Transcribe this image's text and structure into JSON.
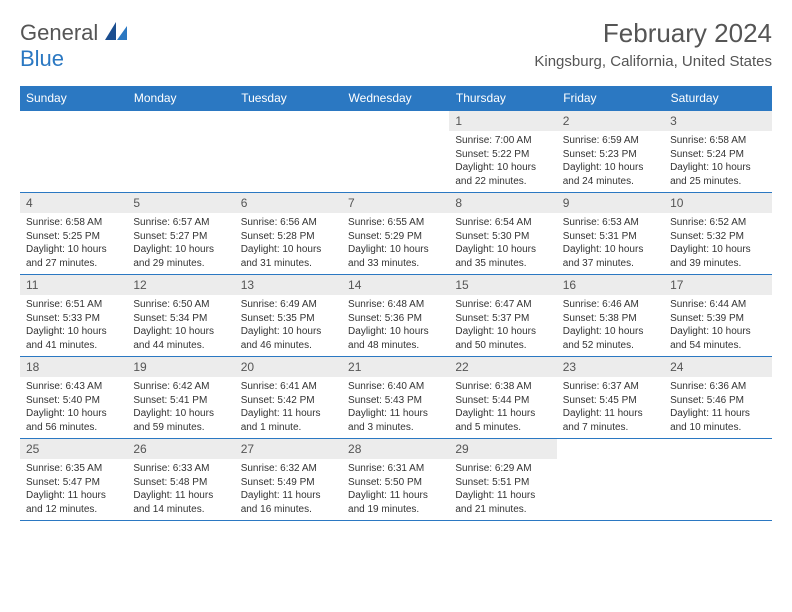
{
  "logo": {
    "text1": "General",
    "text2": "Blue"
  },
  "title": "February 2024",
  "subtitle": "Kingsburg, California, United States",
  "colors": {
    "accent": "#2b78c2",
    "header_row": "#ececec"
  },
  "headers": [
    "Sunday",
    "Monday",
    "Tuesday",
    "Wednesday",
    "Thursday",
    "Friday",
    "Saturday"
  ],
  "weeks": [
    [
      null,
      null,
      null,
      null,
      {
        "d": "1",
        "sr": "Sunrise: 7:00 AM",
        "ss": "Sunset: 5:22 PM",
        "dl1": "Daylight: 10 hours",
        "dl2": "and 22 minutes."
      },
      {
        "d": "2",
        "sr": "Sunrise: 6:59 AM",
        "ss": "Sunset: 5:23 PM",
        "dl1": "Daylight: 10 hours",
        "dl2": "and 24 minutes."
      },
      {
        "d": "3",
        "sr": "Sunrise: 6:58 AM",
        "ss": "Sunset: 5:24 PM",
        "dl1": "Daylight: 10 hours",
        "dl2": "and 25 minutes."
      }
    ],
    [
      {
        "d": "4",
        "sr": "Sunrise: 6:58 AM",
        "ss": "Sunset: 5:25 PM",
        "dl1": "Daylight: 10 hours",
        "dl2": "and 27 minutes."
      },
      {
        "d": "5",
        "sr": "Sunrise: 6:57 AM",
        "ss": "Sunset: 5:27 PM",
        "dl1": "Daylight: 10 hours",
        "dl2": "and 29 minutes."
      },
      {
        "d": "6",
        "sr": "Sunrise: 6:56 AM",
        "ss": "Sunset: 5:28 PM",
        "dl1": "Daylight: 10 hours",
        "dl2": "and 31 minutes."
      },
      {
        "d": "7",
        "sr": "Sunrise: 6:55 AM",
        "ss": "Sunset: 5:29 PM",
        "dl1": "Daylight: 10 hours",
        "dl2": "and 33 minutes."
      },
      {
        "d": "8",
        "sr": "Sunrise: 6:54 AM",
        "ss": "Sunset: 5:30 PM",
        "dl1": "Daylight: 10 hours",
        "dl2": "and 35 minutes."
      },
      {
        "d": "9",
        "sr": "Sunrise: 6:53 AM",
        "ss": "Sunset: 5:31 PM",
        "dl1": "Daylight: 10 hours",
        "dl2": "and 37 minutes."
      },
      {
        "d": "10",
        "sr": "Sunrise: 6:52 AM",
        "ss": "Sunset: 5:32 PM",
        "dl1": "Daylight: 10 hours",
        "dl2": "and 39 minutes."
      }
    ],
    [
      {
        "d": "11",
        "sr": "Sunrise: 6:51 AM",
        "ss": "Sunset: 5:33 PM",
        "dl1": "Daylight: 10 hours",
        "dl2": "and 41 minutes."
      },
      {
        "d": "12",
        "sr": "Sunrise: 6:50 AM",
        "ss": "Sunset: 5:34 PM",
        "dl1": "Daylight: 10 hours",
        "dl2": "and 44 minutes."
      },
      {
        "d": "13",
        "sr": "Sunrise: 6:49 AM",
        "ss": "Sunset: 5:35 PM",
        "dl1": "Daylight: 10 hours",
        "dl2": "and 46 minutes."
      },
      {
        "d": "14",
        "sr": "Sunrise: 6:48 AM",
        "ss": "Sunset: 5:36 PM",
        "dl1": "Daylight: 10 hours",
        "dl2": "and 48 minutes."
      },
      {
        "d": "15",
        "sr": "Sunrise: 6:47 AM",
        "ss": "Sunset: 5:37 PM",
        "dl1": "Daylight: 10 hours",
        "dl2": "and 50 minutes."
      },
      {
        "d": "16",
        "sr": "Sunrise: 6:46 AM",
        "ss": "Sunset: 5:38 PM",
        "dl1": "Daylight: 10 hours",
        "dl2": "and 52 minutes."
      },
      {
        "d": "17",
        "sr": "Sunrise: 6:44 AM",
        "ss": "Sunset: 5:39 PM",
        "dl1": "Daylight: 10 hours",
        "dl2": "and 54 minutes."
      }
    ],
    [
      {
        "d": "18",
        "sr": "Sunrise: 6:43 AM",
        "ss": "Sunset: 5:40 PM",
        "dl1": "Daylight: 10 hours",
        "dl2": "and 56 minutes."
      },
      {
        "d": "19",
        "sr": "Sunrise: 6:42 AM",
        "ss": "Sunset: 5:41 PM",
        "dl1": "Daylight: 10 hours",
        "dl2": "and 59 minutes."
      },
      {
        "d": "20",
        "sr": "Sunrise: 6:41 AM",
        "ss": "Sunset: 5:42 PM",
        "dl1": "Daylight: 11 hours",
        "dl2": "and 1 minute."
      },
      {
        "d": "21",
        "sr": "Sunrise: 6:40 AM",
        "ss": "Sunset: 5:43 PM",
        "dl1": "Daylight: 11 hours",
        "dl2": "and 3 minutes."
      },
      {
        "d": "22",
        "sr": "Sunrise: 6:38 AM",
        "ss": "Sunset: 5:44 PM",
        "dl1": "Daylight: 11 hours",
        "dl2": "and 5 minutes."
      },
      {
        "d": "23",
        "sr": "Sunrise: 6:37 AM",
        "ss": "Sunset: 5:45 PM",
        "dl1": "Daylight: 11 hours",
        "dl2": "and 7 minutes."
      },
      {
        "d": "24",
        "sr": "Sunrise: 6:36 AM",
        "ss": "Sunset: 5:46 PM",
        "dl1": "Daylight: 11 hours",
        "dl2": "and 10 minutes."
      }
    ],
    [
      {
        "d": "25",
        "sr": "Sunrise: 6:35 AM",
        "ss": "Sunset: 5:47 PM",
        "dl1": "Daylight: 11 hours",
        "dl2": "and 12 minutes."
      },
      {
        "d": "26",
        "sr": "Sunrise: 6:33 AM",
        "ss": "Sunset: 5:48 PM",
        "dl1": "Daylight: 11 hours",
        "dl2": "and 14 minutes."
      },
      {
        "d": "27",
        "sr": "Sunrise: 6:32 AM",
        "ss": "Sunset: 5:49 PM",
        "dl1": "Daylight: 11 hours",
        "dl2": "and 16 minutes."
      },
      {
        "d": "28",
        "sr": "Sunrise: 6:31 AM",
        "ss": "Sunset: 5:50 PM",
        "dl1": "Daylight: 11 hours",
        "dl2": "and 19 minutes."
      },
      {
        "d": "29",
        "sr": "Sunrise: 6:29 AM",
        "ss": "Sunset: 5:51 PM",
        "dl1": "Daylight: 11 hours",
        "dl2": "and 21 minutes."
      },
      null,
      null
    ]
  ]
}
